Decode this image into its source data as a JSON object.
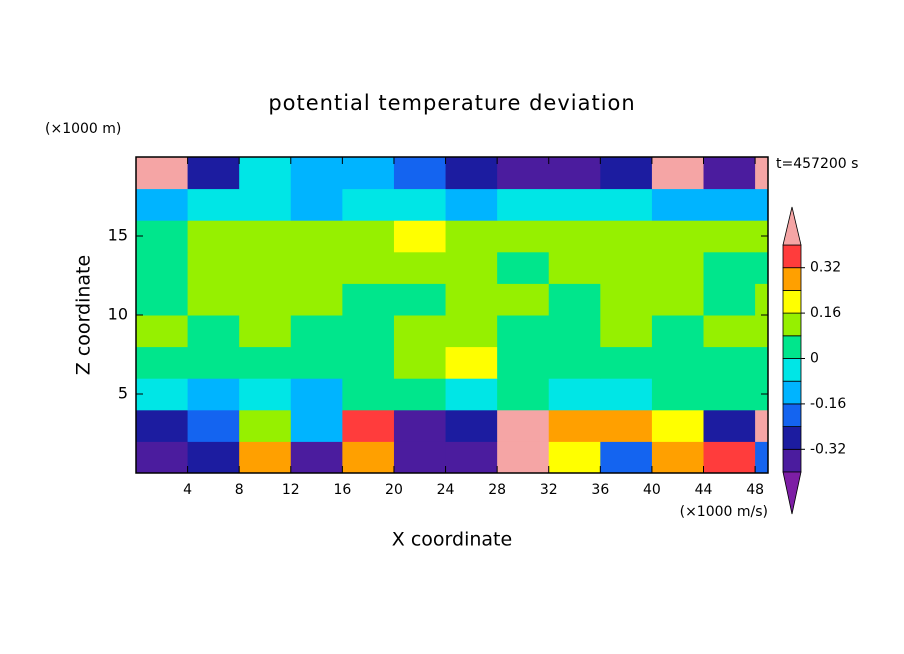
{
  "chart_data": {
    "type": "contour",
    "title": "potential temperature deviation",
    "x_label": "X coordinate",
    "x_unit": "(×1000 m/s)",
    "y_label": "Z coordinate",
    "y_unit": "(×1000 m)",
    "annotation": "t=457200 s",
    "xlim": [
      0,
      49
    ],
    "ylim": [
      0,
      20
    ],
    "xticks": [
      4,
      8,
      12,
      16,
      20,
      24,
      28,
      32,
      36,
      40,
      44,
      48
    ],
    "yticks": [
      5,
      10,
      15
    ],
    "x": [
      2,
      6,
      10,
      14,
      18,
      22,
      26,
      30,
      34,
      38,
      42,
      46,
      50
    ],
    "y": [
      1,
      3,
      5,
      7,
      9,
      11,
      13,
      15,
      17,
      19
    ],
    "z": [
      [
        -0.35,
        -0.3,
        0.3,
        -0.35,
        0.3,
        -0.36,
        -0.34,
        0.45,
        0.2,
        -0.2,
        0.3,
        0.35,
        -0.2
      ],
      [
        -0.3,
        -0.2,
        0.1,
        -0.1,
        0.35,
        -0.36,
        -0.3,
        0.45,
        0.3,
        0.25,
        0.2,
        -0.25,
        0.42
      ],
      [
        -0.05,
        -0.1,
        -0.05,
        -0.1,
        0.05,
        0.05,
        -0.05,
        0.0,
        -0.05,
        -0.05,
        0.0,
        0.05,
        0.05
      ],
      [
        0.05,
        0.03,
        0.04,
        0.02,
        0.05,
        0.1,
        0.18,
        0.05,
        0.03,
        0.05,
        0.02,
        0.05,
        0.05
      ],
      [
        0.1,
        0.05,
        0.08,
        0.03,
        0.05,
        0.1,
        0.12,
        0.05,
        0.03,
        0.1,
        0.05,
        0.08,
        0.1
      ],
      [
        0.05,
        0.1,
        0.1,
        0.1,
        0.05,
        0.04,
        0.1,
        0.1,
        0.05,
        0.1,
        0.1,
        0.05,
        0.1
      ],
      [
        0.05,
        0.1,
        0.1,
        0.1,
        0.1,
        0.1,
        0.1,
        0.05,
        0.1,
        0.1,
        0.1,
        0.05,
        0.05
      ],
      [
        0.05,
        0.1,
        0.1,
        0.1,
        0.12,
        0.18,
        0.12,
        0.1,
        0.1,
        0.1,
        0.1,
        0.1,
        0.1
      ],
      [
        -0.1,
        -0.05,
        -0.05,
        -0.1,
        -0.05,
        -0.05,
        -0.1,
        -0.05,
        -0.05,
        -0.05,
        -0.1,
        -0.15,
        -0.1
      ],
      [
        0.45,
        -0.3,
        -0.05,
        -0.15,
        -0.1,
        -0.2,
        -0.3,
        -0.35,
        -0.36,
        -0.3,
        0.45,
        -0.36,
        0.45
      ]
    ],
    "levels": [
      -0.4,
      -0.32,
      -0.24,
      -0.16,
      -0.08,
      0,
      0.08,
      0.16,
      0.24,
      0.32,
      0.4
    ],
    "colors": [
      "#7d1ea5",
      "#4b1c9e",
      "#1c1ca0",
      "#1464f0",
      "#00b4ff",
      "#00e6e6",
      "#00e68c",
      "#96f000",
      "#ffff00",
      "#ffa000",
      "#ff3c3c",
      "#f5a5a5"
    ],
    "colorbar_ticks": [
      -0.32,
      -0.16,
      0,
      0.16,
      0.32
    ]
  }
}
